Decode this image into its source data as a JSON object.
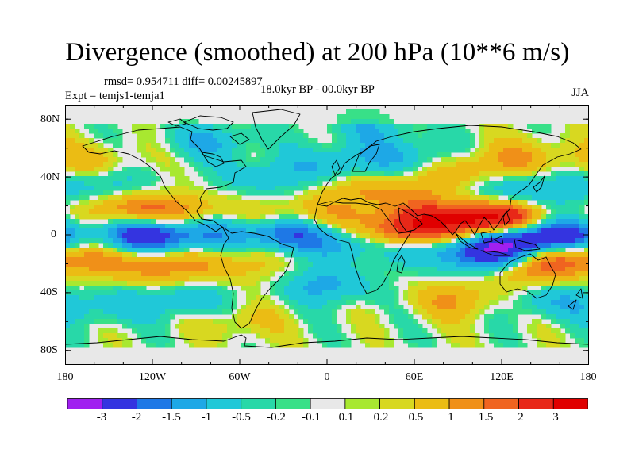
{
  "title": "Divergence (smoothed) at 200 hPa (10**6 m/s)",
  "stats": "rmsd= 0.954711 diff= 0.00245897",
  "experiment": "Expt = temjs1-temja1",
  "period": "18.0kyr BP - 00.0kyr BP",
  "season": "JJA",
  "map": {
    "lat_labels": [
      "80N",
      "40N",
      "0",
      "40S",
      "80S"
    ],
    "lon_labels": [
      "180",
      "120W",
      "60W",
      "0",
      "60E",
      "120E",
      "180"
    ],
    "lon_range": [
      -180,
      180
    ],
    "lat_range": [
      -90,
      90
    ]
  },
  "colorbar": {
    "labels": [
      "-3",
      "-2",
      "-1.5",
      "-1",
      "-0.5",
      "-0.2",
      "-0.1",
      "0.1",
      "0.2",
      "0.5",
      "1",
      "1.5",
      "2",
      "3"
    ],
    "colors": [
      "#a020f0",
      "#3434e0",
      "#1e78e6",
      "#1ea8e6",
      "#20c8d8",
      "#28d8a8",
      "#38e088",
      "#e8e8e8",
      "#a8e830",
      "#d8d820",
      "#ebbc14",
      "#f09018",
      "#f06420",
      "#e82818",
      "#e00000"
    ]
  },
  "features": {
    "pos_centers": [
      {
        "lon": -140,
        "lat": 18,
        "amp": 1.4
      },
      {
        "lon": -100,
        "lat": 14,
        "amp": 1.6
      },
      {
        "lon": -40,
        "lat": 10,
        "amp": 1.2
      },
      {
        "lon": 0,
        "lat": 12,
        "amp": 0.8
      },
      {
        "lon": 50,
        "lat": 2,
        "amp": 2.6
      },
      {
        "lon": 75,
        "lat": 12,
        "amp": 1.2
      },
      {
        "lon": 100,
        "lat": 8,
        "amp": 2.0
      },
      {
        "lon": 125,
        "lat": 12,
        "amp": 2.2
      },
      {
        "lon": 160,
        "lat": -12,
        "amp": 2.6
      },
      {
        "lon": 140,
        "lat": -25,
        "amp": 1.2
      },
      {
        "lon": -150,
        "lat": -18,
        "amp": 1.0
      },
      {
        "lon": -110,
        "lat": -22,
        "amp": 1.2
      },
      {
        "lon": -60,
        "lat": -20,
        "amp": 0.8
      },
      {
        "lon": 20,
        "lat": 30,
        "amp": 0.8
      },
      {
        "lon": 60,
        "lat": 30,
        "amp": 0.8
      },
      {
        "lon": 100,
        "lat": 45,
        "amp": 1.0
      },
      {
        "lon": -160,
        "lat": 50,
        "amp": 0.8
      },
      {
        "lon": -60,
        "lat": -60,
        "amp": 0.6
      },
      {
        "lon": 90,
        "lat": -45,
        "amp": 1.0
      },
      {
        "lon": 140,
        "lat": 55,
        "amp": 0.8
      }
    ],
    "neg_centers": [
      {
        "lon": -120,
        "lat": 0,
        "amp": 3.0
      },
      {
        "lon": -30,
        "lat": 2,
        "amp": 2.4
      },
      {
        "lon": -75,
        "lat": 5,
        "amp": 1.2
      },
      {
        "lon": 130,
        "lat": -5,
        "amp": 3.2
      },
      {
        "lon": 165,
        "lat": -2,
        "amp": 2.8
      },
      {
        "lon": 20,
        "lat": -5,
        "amp": 1.4
      },
      {
        "lon": 70,
        "lat": -8,
        "amp": 1.2
      },
      {
        "lon": 110,
        "lat": -15,
        "amp": 1.6
      },
      {
        "lon": -150,
        "lat": 35,
        "amp": 0.9
      },
      {
        "lon": -40,
        "lat": 40,
        "amp": 0.9
      },
      {
        "lon": 10,
        "lat": 50,
        "amp": 1.0
      },
      {
        "lon": 60,
        "lat": 55,
        "amp": 0.9
      },
      {
        "lon": 120,
        "lat": 30,
        "amp": 1.0
      },
      {
        "lon": -100,
        "lat": -45,
        "amp": 1.0
      },
      {
        "lon": 0,
        "lat": -35,
        "amp": 1.2
      },
      {
        "lon": 150,
        "lat": -45,
        "amp": 0.9
      },
      {
        "lon": -160,
        "lat": -50,
        "amp": 0.8
      },
      {
        "lon": -80,
        "lat": 65,
        "amp": 1.0
      },
      {
        "lon": 160,
        "lat": 30,
        "amp": 0.8
      },
      {
        "lon": 30,
        "lat": 75,
        "amp": 0.8
      }
    ]
  }
}
